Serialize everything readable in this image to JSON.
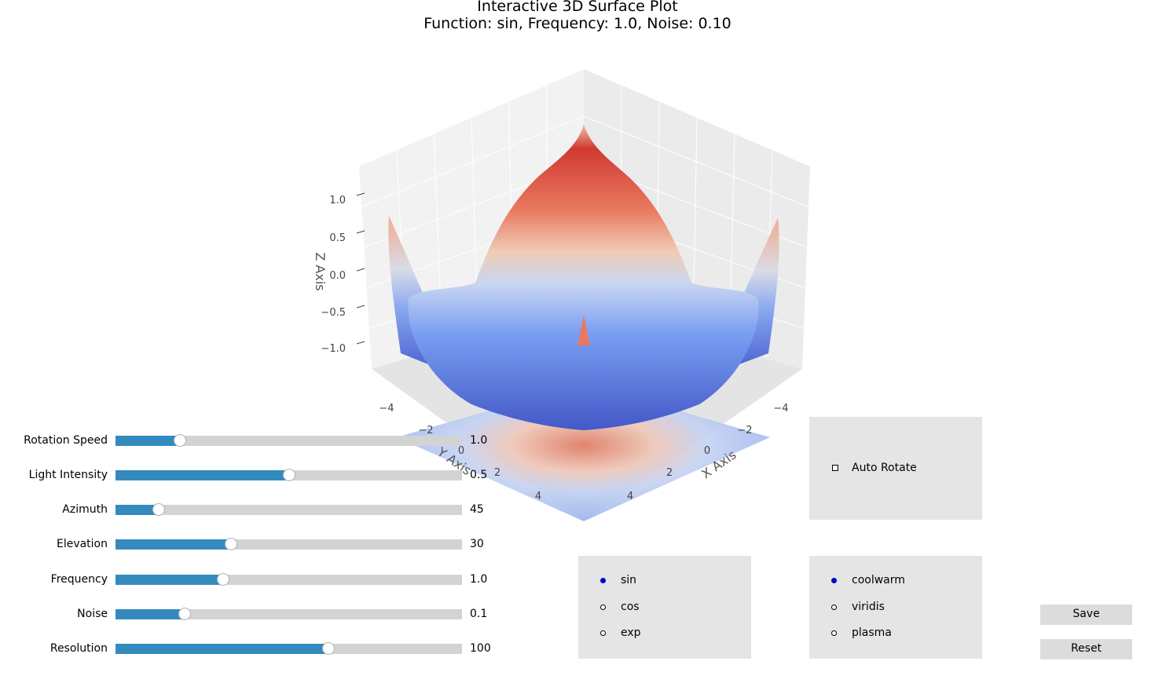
{
  "title": {
    "line1": "Interactive 3D Surface Plot",
    "line2": "Function: sin, Frequency: 1.0, Noise: 0.10"
  },
  "chart_data": {
    "type": "surface3d",
    "function": "sin",
    "frequency": 1.0,
    "noise": 0.1,
    "colormap": "coolwarm",
    "xlabel": "X Axis",
    "ylabel": "Y Axis",
    "zlabel": "Z Axis",
    "xlim": [
      -5,
      5
    ],
    "ylim": [
      -5,
      5
    ],
    "zlim": [
      -1.3,
      1.3
    ],
    "x_ticks": [
      "−4",
      "−2",
      "0",
      "2",
      "4"
    ],
    "y_ticks": [
      "−4",
      "−2",
      "0",
      "2",
      "4"
    ],
    "z_ticks": [
      "1.0",
      "0.5",
      "0.0",
      "−0.5",
      "−1.0"
    ],
    "z_tick_values": [
      1.0,
      0.5,
      0.0,
      -0.5,
      -1.0
    ],
    "view": {
      "azimuth": 45,
      "elevation": 30
    },
    "contour_projection": "bottom"
  },
  "sliders": [
    {
      "label": "Rotation Speed",
      "value": "1.0",
      "fraction": 0.185
    },
    {
      "label": "Light Intensity",
      "value": "0.5",
      "fraction": 0.5
    },
    {
      "label": "Azimuth",
      "value": "45",
      "fraction": 0.125
    },
    {
      "label": "Elevation",
      "value": "30",
      "fraction": 0.333
    },
    {
      "label": "Frequency",
      "value": "1.0",
      "fraction": 0.31
    },
    {
      "label": "Noise",
      "value": "0.1",
      "fraction": 0.2
    },
    {
      "label": "Resolution",
      "value": "100",
      "fraction": 0.615
    }
  ],
  "auto_rotate": {
    "label": "Auto Rotate",
    "checked": false
  },
  "function_options": {
    "items": [
      "sin",
      "cos",
      "exp"
    ],
    "selected": "sin"
  },
  "colormap_options": {
    "items": [
      "coolwarm",
      "viridis",
      "plasma"
    ],
    "selected": "coolwarm"
  },
  "buttons": {
    "save": "Save",
    "reset": "Reset"
  },
  "colors": {
    "slider_fill": "#348abd",
    "slider_track": "#d3d3d3",
    "panel": "#e5e5e5",
    "radio_selected": "#0000cc"
  }
}
